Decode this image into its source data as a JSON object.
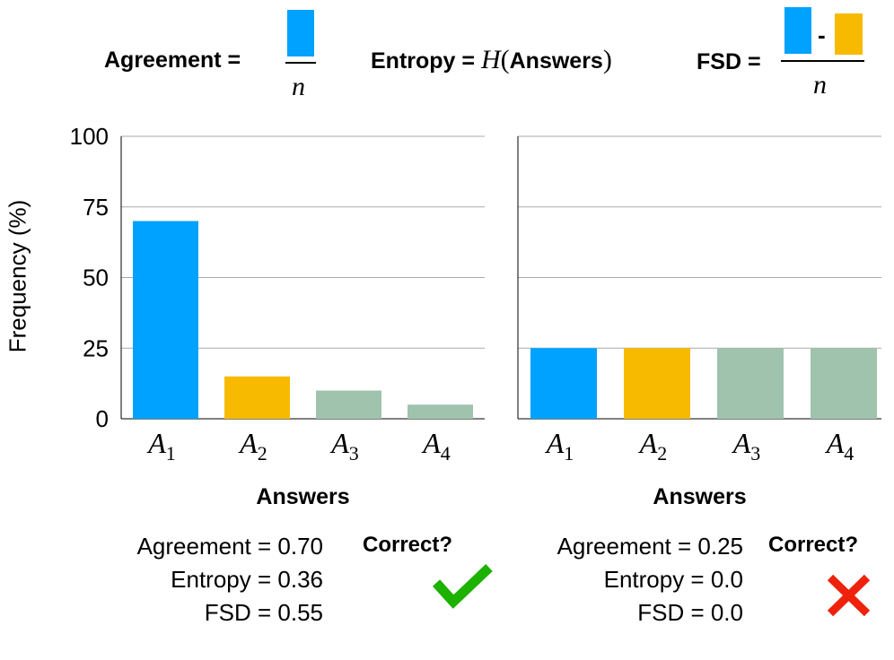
{
  "formulas": {
    "agreement_label": "Agreement =",
    "agreement_denominator": "n",
    "entropy_label": "Entropy =",
    "entropy_func": "H",
    "entropy_open": "(",
    "entropy_arg": "Answers",
    "entropy_close": ")",
    "fsd_label": "FSD =",
    "fsd_minus": "-",
    "fsd_denominator": "n"
  },
  "colors": {
    "a1": "#00a2ff",
    "a2": "#f8ba00",
    "other": "#9fc3ad",
    "check": "#1db100",
    "cross": "#ee220c",
    "grid": "#aaaaaa"
  },
  "chart_data": [
    {
      "type": "bar",
      "ylabel": "Frequency (%)",
      "xlabel": "Answers",
      "ylim": [
        0,
        100
      ],
      "yticks": [
        "0",
        "25",
        "50",
        "75",
        "100"
      ],
      "grid": true,
      "categories": [
        {
          "base": "A",
          "sub": "1"
        },
        {
          "base": "A",
          "sub": "2"
        },
        {
          "base": "A",
          "sub": "3"
        },
        {
          "base": "A",
          "sub": "4"
        }
      ],
      "values": [
        70,
        15,
        10,
        5
      ]
    },
    {
      "type": "bar",
      "xlabel": "Answers",
      "ylim": [
        0,
        100
      ],
      "grid": true,
      "categories": [
        {
          "base": "A",
          "sub": "1"
        },
        {
          "base": "A",
          "sub": "2"
        },
        {
          "base": "A",
          "sub": "3"
        },
        {
          "base": "A",
          "sub": "4"
        }
      ],
      "values": [
        25,
        25,
        25,
        25
      ]
    }
  ],
  "left_stats": {
    "agreement": "Agreement = 0.70",
    "entropy": "Entropy = 0.36",
    "fsd": "FSD = 0.55",
    "correct_label": "Correct?",
    "result_icon": "check-icon"
  },
  "right_stats": {
    "agreement": "Agreement = 0.25",
    "entropy": "Entropy = 0.0",
    "fsd": "FSD = 0.0",
    "correct_label": "Correct?",
    "result_icon": "cross-icon"
  }
}
